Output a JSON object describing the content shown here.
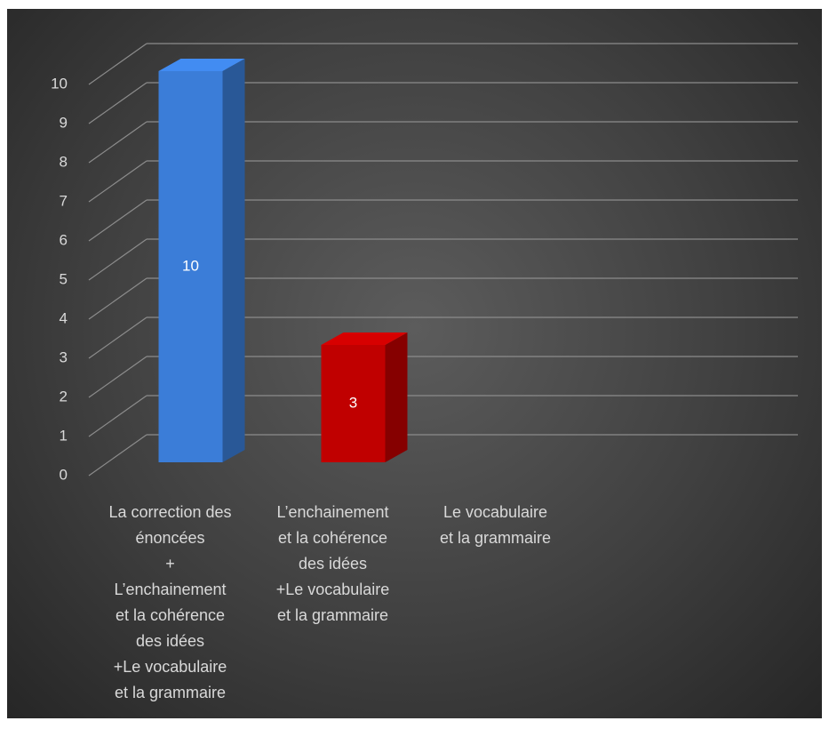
{
  "chart_data": {
    "type": "bar3d",
    "categories": [
      "La correction des\nénoncées\n+\nL’enchainement\net la cohérence\ndes idées\n+Le vocabulaire\net la grammaire",
      "L’enchainement\net la cohérence\ndes idées\n+Le vocabulaire\net la grammaire",
      "Le vocabulaire\net la grammaire"
    ],
    "values": [
      10,
      3,
      null
    ],
    "colors": [
      "#3b7dd8",
      "#c00000",
      "#a5a5a5"
    ],
    "ylim": [
      0,
      10
    ],
    "yticks": [
      0,
      1,
      2,
      3,
      4,
      5,
      6,
      7,
      8,
      9,
      10
    ],
    "grid": true
  }
}
